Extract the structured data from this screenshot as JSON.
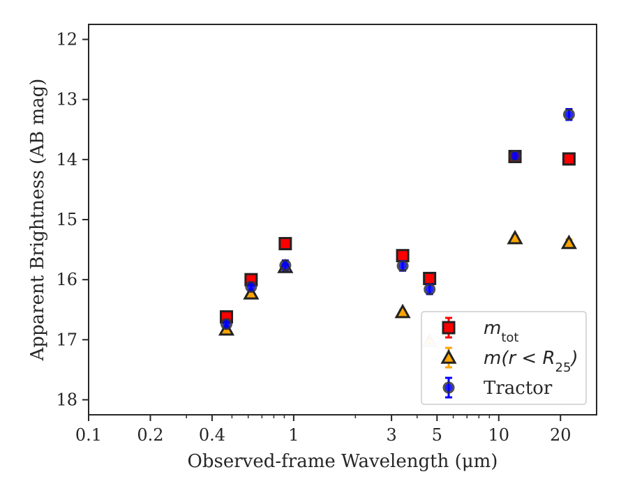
{
  "chart_data": {
    "type": "scatter",
    "xlabel": "Observed-frame Wavelength (μm)",
    "ylabel": "Apparent Brightness (AB mag)",
    "x_scale": "log",
    "xlim": [
      0.1,
      30
    ],
    "ylim": [
      18.25,
      11.75
    ],
    "y_inverted": true,
    "grid": false,
    "legend_position": "lower-right",
    "x_ticks": [
      {
        "value": 0.1,
        "label": "0.1"
      },
      {
        "value": 0.2,
        "label": "0.2"
      },
      {
        "value": 0.4,
        "label": "0.4"
      },
      {
        "value": 1,
        "label": "1"
      },
      {
        "value": 3,
        "label": "3"
      },
      {
        "value": 5,
        "label": "5"
      },
      {
        "value": 10,
        "label": "10"
      },
      {
        "value": 20,
        "label": "20"
      }
    ],
    "y_ticks": [
      {
        "value": 12,
        "label": "12"
      },
      {
        "value": 13,
        "label": "13"
      },
      {
        "value": 14,
        "label": "14"
      },
      {
        "value": 15,
        "label": "15"
      },
      {
        "value": 16,
        "label": "16"
      },
      {
        "value": 17,
        "label": "17"
      },
      {
        "value": 18,
        "label": "18"
      }
    ],
    "series": [
      {
        "name": "m_tot",
        "legend_main": "m",
        "legend_sub": "tot",
        "marker": "square",
        "color": "#ff0000",
        "errcolor": "#ff0000",
        "points": [
          {
            "x": 0.47,
            "y": 16.62,
            "err": 0.05
          },
          {
            "x": 0.62,
            "y": 16.0,
            "err": 0.05
          },
          {
            "x": 0.91,
            "y": 15.4,
            "err": 0.05
          },
          {
            "x": 3.4,
            "y": 15.6,
            "err": 0.05
          },
          {
            "x": 4.6,
            "y": 15.98,
            "err": 0.05
          },
          {
            "x": 12.0,
            "y": 13.95,
            "err": 0.06
          },
          {
            "x": 22.0,
            "y": 13.99,
            "err": 0.05
          }
        ]
      },
      {
        "name": "m(r<R25)",
        "legend_main": "m(r < R",
        "legend_sub": "25",
        "legend_tail": ")",
        "marker": "triangle",
        "color": "#ffa500",
        "errcolor": "#ffa500",
        "points": [
          {
            "x": 0.47,
            "y": 16.83,
            "err": 0.04,
            "faded": false
          },
          {
            "x": 0.62,
            "y": 16.23,
            "err": 0.04,
            "faded": false
          },
          {
            "x": 0.91,
            "y": 15.79,
            "err": 0.04,
            "faded": false
          },
          {
            "x": 3.4,
            "y": 16.54,
            "err": 0.04,
            "faded": false
          },
          {
            "x": 4.6,
            "y": 17.02,
            "err": 0.04,
            "faded": true
          },
          {
            "x": 12.0,
            "y": 15.31,
            "err": 0.04,
            "faded": false
          },
          {
            "x": 22.0,
            "y": 15.39,
            "err": 0.06,
            "faded": false
          }
        ]
      },
      {
        "name": "Tractor",
        "legend_main": "Tractor",
        "marker": "circle",
        "color": "#0000ff",
        "errcolor": "#0000ff",
        "points": [
          {
            "x": 0.47,
            "y": 16.74,
            "err": 0.07
          },
          {
            "x": 0.62,
            "y": 16.12,
            "err": 0.07
          },
          {
            "x": 0.91,
            "y": 15.76,
            "err": 0.08
          },
          {
            "x": 3.4,
            "y": 15.77,
            "err": 0.08
          },
          {
            "x": 4.6,
            "y": 16.16,
            "err": 0.08
          },
          {
            "x": 12.0,
            "y": 13.94,
            "err": 0.06
          },
          {
            "x": 22.0,
            "y": 13.25,
            "err": 0.09
          }
        ]
      }
    ]
  }
}
